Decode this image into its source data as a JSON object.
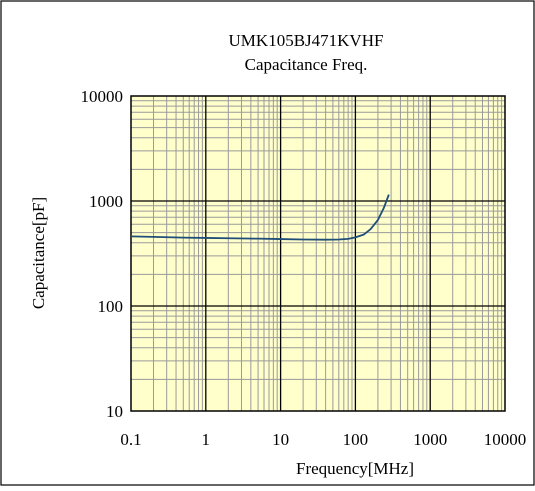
{
  "chart_data": {
    "type": "line",
    "title": "UMK105BJ471KVHF",
    "subtitle": "Capacitance Freq.",
    "xlabel": "Frequency[MHz]",
    "ylabel": "Capacitance[pF]",
    "x_scale": "log",
    "y_scale": "log",
    "xlim": [
      0.1,
      10000
    ],
    "ylim": [
      10,
      10000
    ],
    "x_ticks": [
      "0.1",
      "1",
      "10",
      "100",
      "1000",
      "10000"
    ],
    "y_ticks": [
      "10",
      "100",
      "1000",
      "10000"
    ],
    "grid": true,
    "plot_background": "#ffffcc",
    "major_grid_color": "#000000",
    "minor_grid_color": "#9a9a9a",
    "series": [
      {
        "color": "#1f4e79",
        "x": [
          0.1,
          0.2,
          0.5,
          1,
          2,
          5,
          10,
          20,
          40,
          60,
          80,
          100,
          130,
          160,
          200,
          240,
          280
        ],
        "y": [
          460,
          455,
          448,
          445,
          442,
          438,
          434,
          430,
          428,
          430,
          436,
          450,
          480,
          540,
          660,
          860,
          1150
        ]
      }
    ]
  }
}
